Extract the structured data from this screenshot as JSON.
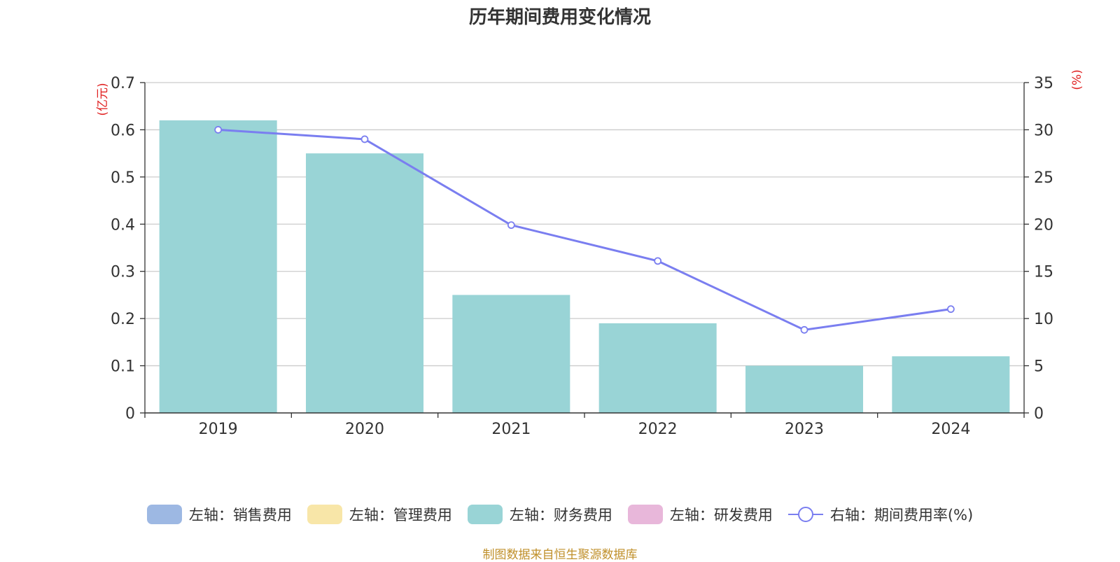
{
  "chart_data": {
    "type": "bar",
    "title": "历年期间费用变化情况",
    "categories": [
      "2019",
      "2020",
      "2021",
      "2022",
      "2023",
      "2024"
    ],
    "left_axis": {
      "unit": "(亿元)",
      "ylim": [
        0,
        0.7
      ],
      "ticks": [
        "0",
        "0.1",
        "0.2",
        "0.3",
        "0.4",
        "0.5",
        "0.6",
        "0.7"
      ]
    },
    "right_axis": {
      "unit": "(%)",
      "ylim": [
        0,
        35
      ],
      "ticks": [
        "0",
        "5",
        "10",
        "15",
        "20",
        "25",
        "30",
        "35"
      ]
    },
    "series": [
      {
        "name": "左轴：销售费用",
        "type": "bar",
        "axis": "left",
        "color": "#9db8e3",
        "values": [
          0,
          0,
          0,
          0,
          0,
          0
        ]
      },
      {
        "name": "左轴：管理费用",
        "type": "bar",
        "axis": "left",
        "color": "#f8e6a8",
        "values": [
          0,
          0,
          0,
          0,
          0,
          0
        ]
      },
      {
        "name": "左轴：财务费用",
        "type": "bar",
        "axis": "left",
        "color": "#99d4d6",
        "values": [
          0.62,
          0.55,
          0.25,
          0.19,
          0.1,
          0.12
        ]
      },
      {
        "name": "左轴：研发费用",
        "type": "bar",
        "axis": "left",
        "color": "#e8b7da",
        "values": [
          0,
          0,
          0,
          0,
          0,
          0
        ]
      },
      {
        "name": "右轴：期间费用率(%)",
        "type": "line",
        "axis": "right",
        "color": "#7a7ef0",
        "values": [
          30.0,
          29.0,
          19.9,
          16.1,
          8.8,
          11.0
        ]
      }
    ],
    "grid": true,
    "legend_position": "bottom"
  },
  "source_note": "制图数据来自恒生聚源数据库"
}
